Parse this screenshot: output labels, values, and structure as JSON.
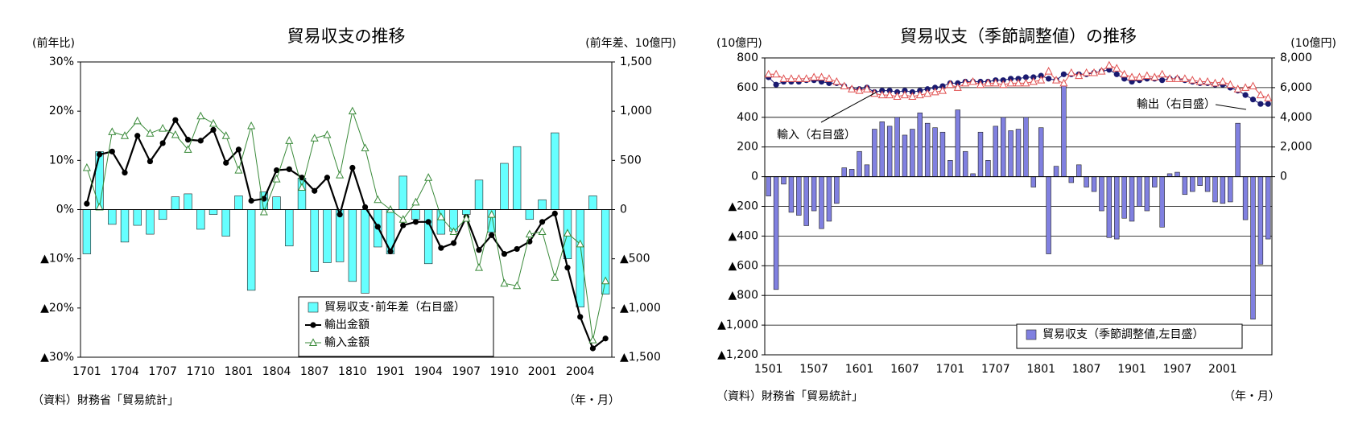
{
  "chart_data": [
    {
      "type": "bar",
      "title": "貿易収支の推移",
      "ylabel": "(前年比)",
      "y2label": "(前年差、10億円)",
      "source": "（資料）財務省「貿易統計」",
      "xlabel": "（年・月）",
      "categories": [
        "1701",
        null,
        null,
        "1704",
        null,
        null,
        "1707",
        null,
        null,
        "1710",
        null,
        null,
        "1801",
        null,
        null,
        "1804",
        null,
        null,
        "1807",
        null,
        null,
        "1810",
        null,
        null,
        "1901",
        null,
        null,
        "1904",
        null,
        null,
        "1907",
        null,
        null,
        "1910",
        null,
        null,
        "2001",
        null,
        null,
        "2004",
        null,
        null
      ],
      "ylim": [
        -30,
        30
      ],
      "yticks": [
        {
          "value": 30,
          "label": "30%"
        },
        {
          "value": 20,
          "label": "20%"
        },
        {
          "value": 10,
          "label": "10%"
        },
        {
          "value": 0,
          "label": "0%"
        },
        {
          "value": -10,
          "label": "▲10%"
        },
        {
          "value": -20,
          "label": "▲20%"
        },
        {
          "value": -30,
          "label": "▲30%"
        }
      ],
      "y2lim": [
        -1500,
        1500
      ],
      "y2ticks": [
        {
          "value": 1500,
          "label": "1,500"
        },
        {
          "value": 1000,
          "label": "1,000"
        },
        500,
        0,
        {
          "value": -500,
          "label": "▲500"
        },
        {
          "value": -1000,
          "label": "▲1,000"
        },
        {
          "value": -1500,
          "label": "▲1,500"
        }
      ],
      "grid": false,
      "legend": "lower right",
      "series": [
        {
          "name": "貿易収支･前年差（右目盛）",
          "type": "bar",
          "axis": "y2",
          "color": "#66ffff",
          "values": [
            -450,
            590,
            -150,
            -330,
            -160,
            -250,
            -100,
            130,
            160,
            -200,
            -50,
            -270,
            140,
            -820,
            180,
            130,
            -370,
            320,
            -630,
            -540,
            -530,
            -730,
            -850,
            -380,
            -450,
            340,
            -100,
            -550,
            -250,
            -220,
            -50,
            300,
            -230,
            470,
            640,
            -100,
            100,
            780,
            -500,
            -990,
            140,
            -860
          ]
        },
        {
          "name": "輸出金額",
          "type": "line",
          "marker": "circle",
          "color": "#000000",
          "values": [
            1.2,
            11.2,
            11.8,
            7.5,
            15,
            9.8,
            13.5,
            18.2,
            14.2,
            14,
            16.2,
            9.5,
            12.2,
            1.8,
            2.2,
            8,
            8.2,
            6.5,
            3.8,
            6.5,
            -1,
            8.5,
            0.5,
            -3.5,
            -8.5,
            -3.2,
            -2.5,
            -2.5,
            -7.8,
            -6.8,
            -1.5,
            -8.2,
            -5.2,
            -9,
            -8,
            -6.5,
            -2.5,
            -0.8,
            -11.8,
            -21.8,
            -28.2,
            -26.2
          ]
        },
        {
          "name": "輸入金額",
          "type": "line",
          "marker": "triangle",
          "color": "#3a8a3a",
          "values": [
            8.5,
            0.5,
            15.8,
            15,
            18,
            15.5,
            16.5,
            15.2,
            12.2,
            19,
            17.5,
            15,
            8,
            17,
            -0.5,
            6.2,
            14,
            4.5,
            14.5,
            15.2,
            7,
            20,
            12.5,
            2,
            0,
            -2,
            1.5,
            6.5,
            -1.5,
            -4.5,
            -1.8,
            -11.8,
            -1,
            -15,
            -15.5,
            -5,
            -4.5,
            -13.8,
            -4.8,
            -7,
            -26.5,
            -14.5
          ]
        }
      ]
    },
    {
      "type": "bar",
      "title": "貿易収支（季節調整値）の推移",
      "ylabel": "(10億円)",
      "y2label": "(10億円)",
      "source": "（資料）財務省「貿易統計」",
      "xlabel": "（年・月）",
      "annotations": [
        "輸入（右目盛）",
        "輸出（右目盛）"
      ],
      "categories": [
        "1501",
        null,
        null,
        null,
        null,
        null,
        "1507",
        null,
        null,
        null,
        null,
        null,
        "1601",
        null,
        null,
        null,
        null,
        null,
        "1607",
        null,
        null,
        null,
        null,
        null,
        "1701",
        null,
        null,
        null,
        null,
        null,
        "1707",
        null,
        null,
        null,
        null,
        null,
        "1801",
        null,
        null,
        null,
        null,
        null,
        "1807",
        null,
        null,
        null,
        null,
        null,
        "1901",
        null,
        null,
        null,
        null,
        null,
        "1907",
        null,
        null,
        null,
        null,
        null,
        "2001",
        null,
        null,
        null,
        null,
        null,
        null
      ],
      "ylim": [
        -1200,
        800
      ],
      "yticks": [
        800,
        600,
        400,
        200,
        0,
        {
          "value": -200,
          "label": "▲200"
        },
        {
          "value": -400,
          "label": "▲400"
        },
        {
          "value": -600,
          "label": "▲600"
        },
        {
          "value": -800,
          "label": "▲800"
        },
        {
          "value": -1000,
          "label": "▲1,000"
        },
        {
          "value": -1200,
          "label": "▲1,200"
        }
      ],
      "y2lim": [
        -12000,
        8000
      ],
      "y2ticks": [
        {
          "value": 8000,
          "label": "8,000"
        },
        {
          "value": 6000,
          "label": "6,000"
        },
        {
          "value": 4000,
          "label": "4,000"
        },
        {
          "value": 2000,
          "label": "2,000"
        },
        0
      ],
      "grid": true,
      "legend": "lower right",
      "series": [
        {
          "name": "貿易収支（季節調整値,左目盛）",
          "type": "bar",
          "axis": "y",
          "color": "#8080e0",
          "values": [
            -130,
            -760,
            -50,
            -240,
            -260,
            -330,
            -230,
            -350,
            -300,
            -180,
            60,
            50,
            170,
            80,
            320,
            370,
            340,
            400,
            280,
            320,
            430,
            360,
            330,
            300,
            110,
            450,
            170,
            20,
            300,
            110,
            340,
            400,
            310,
            320,
            400,
            -70,
            330,
            -520,
            70,
            620,
            -40,
            80,
            -70,
            -100,
            -230,
            -410,
            -420,
            -280,
            -300,
            -200,
            -230,
            -70,
            -340,
            20,
            30,
            -120,
            -100,
            -60,
            -100,
            -170,
            -180,
            -170,
            360,
            -290,
            -960,
            -590,
            -420
          ]
        },
        {
          "type": "line",
          "axis": "y2",
          "marker": "circle",
          "color": "#1a1a70",
          "values": [
            6700,
            6200,
            6400,
            6400,
            6400,
            6500,
            6500,
            6400,
            6300,
            6300,
            6100,
            5900,
            5900,
            6000,
            5700,
            5800,
            5800,
            5700,
            5800,
            5700,
            5800,
            5900,
            6000,
            6100,
            6300,
            6300,
            6400,
            6400,
            6400,
            6400,
            6500,
            6500,
            6600,
            6600,
            6700,
            6700,
            6800,
            6600,
            6500,
            6900,
            6900,
            6900,
            6900,
            7000,
            7100,
            7200,
            6900,
            6600,
            6400,
            6500,
            6600,
            6600,
            6500,
            6600,
            6600,
            6500,
            6400,
            6300,
            6300,
            6200,
            6200,
            6000,
            5800,
            5500,
            5200,
            4900,
            4900
          ]
        },
        {
          "type": "line",
          "axis": "y2",
          "marker": "triangle",
          "color": "#e05050",
          "values": [
            6900,
            6900,
            6600,
            6600,
            6600,
            6600,
            6700,
            6700,
            6600,
            6400,
            6100,
            5900,
            5800,
            5900,
            5600,
            5500,
            5500,
            5400,
            5500,
            5400,
            5500,
            5600,
            5700,
            5800,
            6200,
            6000,
            6300,
            6400,
            6200,
            6300,
            6300,
            6200,
            6300,
            6300,
            6300,
            6400,
            6500,
            7100,
            6500,
            6300,
            7000,
            6800,
            7000,
            7000,
            7100,
            7500,
            7300,
            6900,
            6700,
            6700,
            6800,
            6700,
            6900,
            6600,
            6600,
            6600,
            6500,
            6400,
            6400,
            6300,
            6400,
            6200,
            5900,
            6000,
            6100,
            5500,
            5300
          ]
        }
      ]
    }
  ]
}
